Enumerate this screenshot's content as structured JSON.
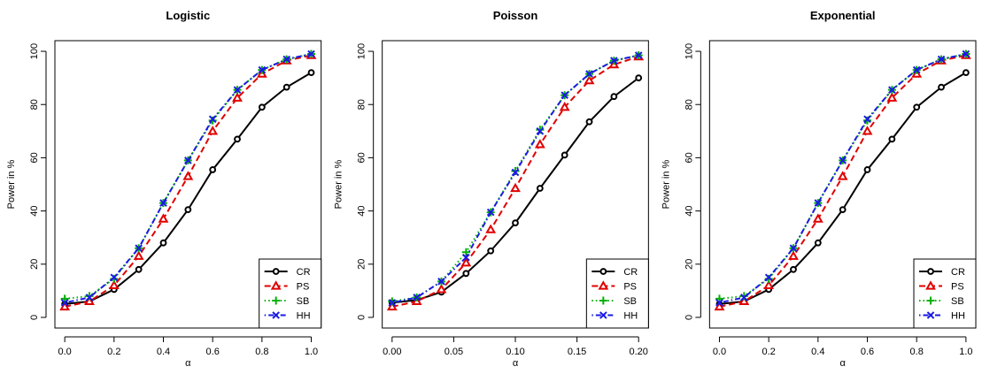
{
  "figure": {
    "ylabel": "Power in %",
    "xlabel": "α",
    "colors": {
      "CR": "#000000",
      "PS": "#e00000",
      "SB": "#00b000",
      "HH": "#1a1ae6"
    }
  },
  "chart_data": [
    {
      "type": "line",
      "title": "Logistic",
      "xlabel": "α",
      "ylabel": "Power in %",
      "xlim": [
        0,
        1
      ],
      "ylim": [
        0,
        100
      ],
      "xticks": [
        0.0,
        0.2,
        0.4,
        0.6,
        0.8,
        1.0
      ],
      "xtick_labels": [
        "0.0",
        "0.2",
        "0.4",
        "0.6",
        "0.8",
        "1.0"
      ],
      "yticks": [
        0,
        20,
        40,
        60,
        80,
        100
      ],
      "ytick_labels": [
        "0",
        "20",
        "40",
        "60",
        "80",
        "100"
      ],
      "legend_position": "bottom-right",
      "x": [
        0.0,
        0.1,
        0.2,
        0.3,
        0.4,
        0.5,
        0.6,
        0.7,
        0.8,
        0.9,
        1.0
      ],
      "series": [
        {
          "name": "CR",
          "marker": "circle",
          "line": "solid",
          "values": [
            5,
            6,
            10.5,
            18,
            28,
            40.5,
            55.5,
            67,
            79,
            86.5,
            92
          ]
        },
        {
          "name": "PS",
          "marker": "triangle",
          "line": "dashed",
          "values": [
            4,
            6,
            12,
            23,
            37,
            53,
            70,
            82.5,
            91.5,
            96.5,
            98.5
          ]
        },
        {
          "name": "SB",
          "marker": "plus",
          "line": "dotted",
          "values": [
            7,
            8,
            14.5,
            26,
            43,
            59,
            74,
            85.5,
            93,
            97,
            99
          ]
        },
        {
          "name": "HH",
          "marker": "cross",
          "line": "dotdash",
          "values": [
            5.5,
            7.5,
            15,
            26,
            43,
            59,
            74.5,
            85.5,
            93,
            97,
            99
          ]
        }
      ]
    },
    {
      "type": "line",
      "title": "Poisson",
      "xlabel": "α",
      "ylabel": "Power in %",
      "xlim": [
        0,
        0.2
      ],
      "ylim": [
        0,
        100
      ],
      "xticks": [
        0.0,
        0.05,
        0.1,
        0.15,
        0.2
      ],
      "xtick_labels": [
        "0.00",
        "0.05",
        "0.10",
        "0.15",
        "0.20"
      ],
      "yticks": [
        0,
        20,
        40,
        60,
        80,
        100
      ],
      "ytick_labels": [
        "0",
        "20",
        "40",
        "60",
        "80",
        "100"
      ],
      "legend_position": "bottom-right",
      "x": [
        0.0,
        0.02,
        0.04,
        0.06,
        0.08,
        0.1,
        0.12,
        0.14,
        0.16,
        0.18,
        0.2
      ],
      "series": [
        {
          "name": "CR",
          "marker": "circle",
          "line": "solid",
          "values": [
            5.5,
            6.5,
            9.5,
            16.5,
            25,
            35.5,
            48.5,
            61,
            73.5,
            83,
            90
          ]
        },
        {
          "name": "PS",
          "marker": "triangle",
          "line": "dashed",
          "values": [
            4,
            6,
            10.5,
            20.5,
            33,
            48.5,
            65,
            79,
            89,
            95,
            98
          ]
        },
        {
          "name": "SB",
          "marker": "plus",
          "line": "dotted",
          "values": [
            6,
            7.5,
            13.5,
            24.5,
            39.5,
            55,
            70.5,
            83.5,
            91.5,
            96.5,
            98.5
          ]
        },
        {
          "name": "HH",
          "marker": "cross",
          "line": "dotdash",
          "values": [
            5.5,
            7.5,
            13.5,
            22.5,
            39.5,
            54.5,
            70,
            83.5,
            91.5,
            96.5,
            98.5
          ]
        }
      ]
    },
    {
      "type": "line",
      "title": "Exponential",
      "xlabel": "α",
      "ylabel": "Power in %",
      "xlim": [
        0,
        1
      ],
      "ylim": [
        0,
        100
      ],
      "xticks": [
        0.0,
        0.2,
        0.4,
        0.6,
        0.8,
        1.0
      ],
      "xtick_labels": [
        "0.0",
        "0.2",
        "0.4",
        "0.6",
        "0.8",
        "1.0"
      ],
      "yticks": [
        0,
        20,
        40,
        60,
        80,
        100
      ],
      "ytick_labels": [
        "0",
        "20",
        "40",
        "60",
        "80",
        "100"
      ],
      "legend_position": "bottom-right",
      "x": [
        0.0,
        0.1,
        0.2,
        0.3,
        0.4,
        0.5,
        0.6,
        0.7,
        0.8,
        0.9,
        1.0
      ],
      "series": [
        {
          "name": "CR",
          "marker": "circle",
          "line": "solid",
          "values": [
            5,
            6,
            10.5,
            18,
            28,
            40.5,
            55.5,
            67,
            79,
            86.5,
            92
          ]
        },
        {
          "name": "PS",
          "marker": "triangle",
          "line": "dashed",
          "values": [
            4,
            6,
            12,
            23,
            37,
            53,
            70,
            82.5,
            91.5,
            96.5,
            98.5
          ]
        },
        {
          "name": "SB",
          "marker": "plus",
          "line": "dotted",
          "values": [
            7,
            8,
            14.5,
            26,
            43,
            59,
            74,
            85.5,
            93,
            97,
            99
          ]
        },
        {
          "name": "HH",
          "marker": "cross",
          "line": "dotdash",
          "values": [
            5.5,
            7.5,
            15,
            26,
            43,
            59,
            74.5,
            85.5,
            93,
            97,
            99
          ]
        }
      ]
    }
  ]
}
